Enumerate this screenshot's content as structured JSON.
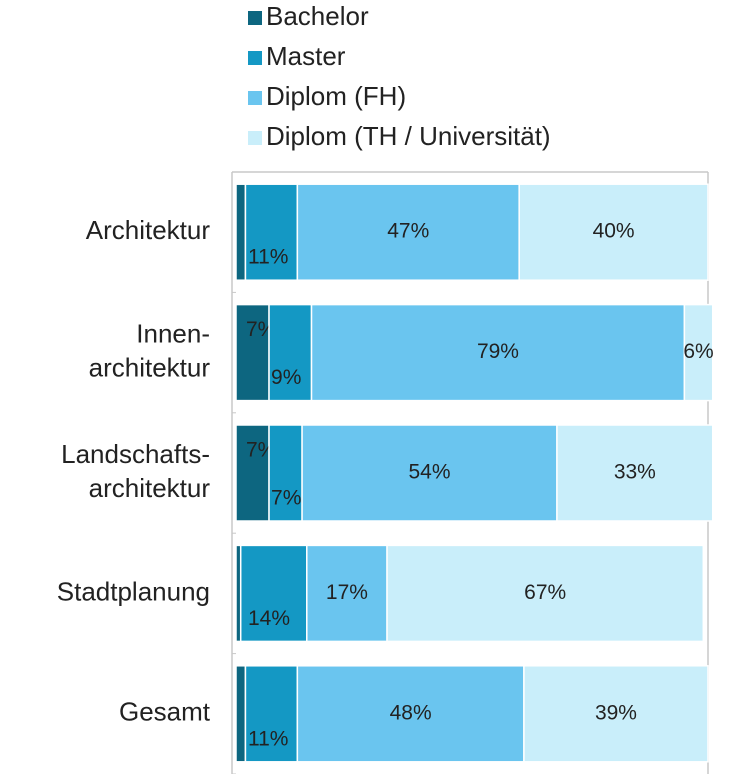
{
  "chart_data": {
    "type": "stacked_bar_horizontal",
    "categories": [
      "Architektur",
      "Innen-\narchitektur",
      "Landschafts-\narchitektur",
      "Stadtplanung",
      "Gesamt"
    ],
    "xlim": [
      0,
      100
    ],
    "legend": "top",
    "series": [
      {
        "name": "Bachelor",
        "color": "#0d6680",
        "values": [
          2,
          7,
          7,
          1,
          2
        ],
        "value_labels": [
          "2%",
          "7%",
          "7%",
          "1%",
          "2%"
        ]
      },
      {
        "name": "Master",
        "color": "#1498c4",
        "values": [
          11,
          9,
          7,
          14,
          11
        ],
        "value_labels": [
          "11%",
          "9%",
          "7%",
          "14%",
          "11%"
        ]
      },
      {
        "name": "Diplom (FH)",
        "color": "#6ac5ef",
        "values": [
          47,
          79,
          54,
          17,
          48
        ],
        "value_labels": [
          "47%",
          "79%",
          "54%",
          "17%",
          "48%"
        ]
      },
      {
        "name": "Diplom (TH / Universität)",
        "color": "#c9eefa",
        "values": [
          40,
          6,
          33,
          67,
          39
        ],
        "value_labels": [
          "40%",
          "6%",
          "33%",
          "67%",
          "39%"
        ]
      }
    ]
  }
}
